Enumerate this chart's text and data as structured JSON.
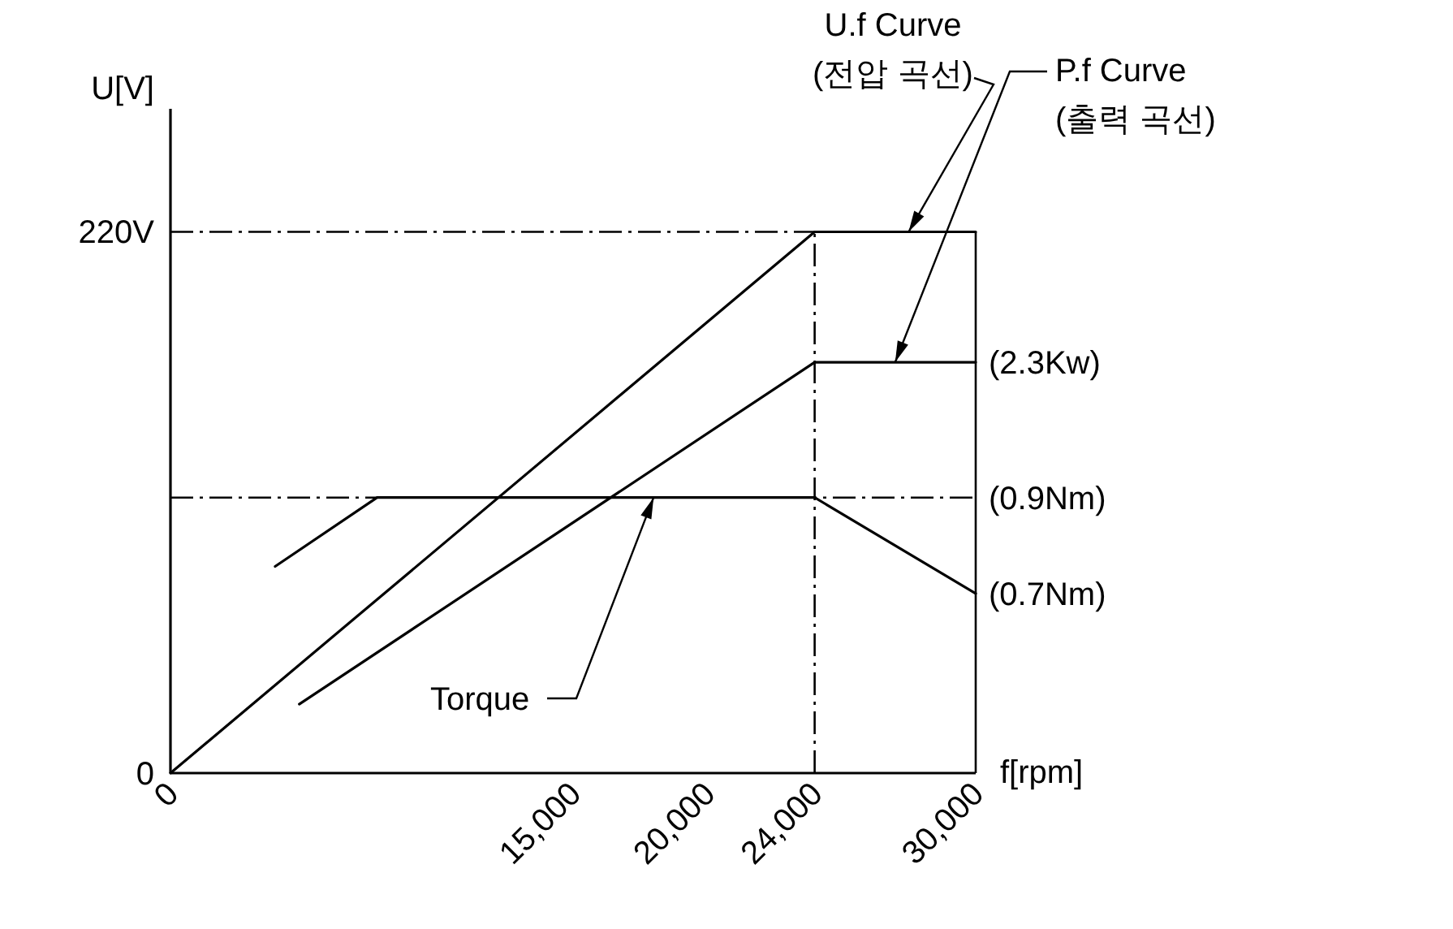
{
  "chart_data": {
    "type": "line",
    "xlabel": "f[rpm]",
    "ylabel": "U[V]",
    "xlim": [
      0,
      30000
    ],
    "ylim": [
      0,
      270
    ],
    "xticks": [
      0,
      {
        "value": 15000,
        "label": "15,000"
      },
      {
        "value": 20000,
        "label": "20,000"
      },
      {
        "value": 24000,
        "label": "24,000"
      },
      {
        "value": 30000,
        "label": "30,000"
      }
    ],
    "yticks": [
      0,
      {
        "value": 220,
        "label": "220V"
      }
    ],
    "grid": false,
    "marker": "none",
    "line_style": "solid",
    "series": [
      {
        "color": "#000000",
        "x": [
          0,
          24000,
          30000
        ],
        "values": [
          0,
          220,
          220
        ]
      },
      {
        "color": "#000000",
        "x": [
          4800,
          24000,
          30000
        ],
        "values": [
          28,
          167,
          167
        ]
      },
      {
        "color": "#000000",
        "x": [
          3900,
          7700,
          24000,
          30000
        ],
        "values": [
          84,
          112,
          112,
          73
        ]
      }
    ],
    "ref_lines": [
      {
        "axis": "y",
        "value": 220,
        "line_style": "dashdot",
        "color": "#000000"
      },
      {
        "axis": "y",
        "value": 112,
        "line_style": "dashdot",
        "color": "#000000"
      },
      {
        "axis": "x",
        "value": 24000,
        "line_style": "dashdot",
        "color": "#000000"
      },
      {
        "axis": "x",
        "value": 30000,
        "line_style": "solid",
        "color": "#000000"
      }
    ],
    "annotations": [
      {
        "text": "U.f Curve\n(전압 곡선)",
        "x": 27500,
        "y": 220
      },
      {
        "text": "P.f Curve\n(출력 곡선)",
        "x": 27000,
        "y": 167
      },
      {
        "text": "(2.3Kw)",
        "x": 30000,
        "y": 167
      },
      {
        "text": "(0.9Nm)",
        "x": 30000,
        "y": 112
      },
      {
        "text": "(0.7Nm)",
        "x": 30000,
        "y": 73
      },
      {
        "text": "Torque",
        "x": 18000,
        "y": 112
      }
    ]
  }
}
